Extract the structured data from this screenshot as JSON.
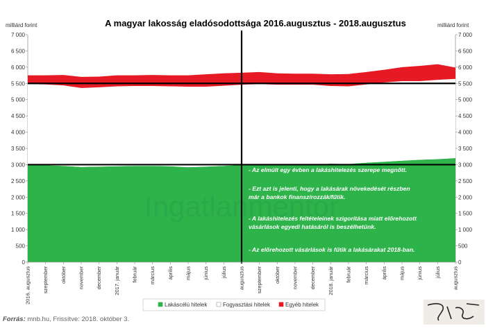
{
  "chart_data": {
    "type": "area",
    "title": "A magyar lakosság eladósodottsága 2016.augusztus - 2018.augusztus",
    "ylabel_left": "milliárd forint",
    "ylabel_right": "milliárd forint",
    "ylim": [
      0,
      7000
    ],
    "yticks": [
      "0",
      "500",
      "1 000",
      "1 500",
      "2 000",
      "2 500",
      "3 000",
      "3 500",
      "4 000",
      "4 500",
      "5 000",
      "5 500",
      "6 000",
      "6 500",
      "7 000"
    ],
    "ytick_values": [
      0,
      500,
      1000,
      1500,
      2000,
      2500,
      3000,
      3500,
      4000,
      4500,
      5000,
      5500,
      6000,
      6500,
      7000
    ],
    "categories": [
      "2016. augusztus",
      "szeptember",
      "október",
      "november",
      "december",
      "2017. január",
      "február",
      "március",
      "április",
      "május",
      "június",
      "július",
      "augusztus",
      "szeptember",
      "október",
      "november",
      "december",
      "2018. január",
      "február",
      "március",
      "április",
      "május",
      "június",
      "július",
      "augusztus"
    ],
    "series": [
      {
        "name": "Lakáscélú hitelek",
        "color": "#2db34a",
        "values": [
          3000,
          2980,
          2960,
          2930,
          2940,
          2950,
          2960,
          2960,
          2950,
          2920,
          2940,
          2960,
          2990,
          3010,
          3000,
          2990,
          3000,
          3030,
          3020,
          3060,
          3090,
          3120,
          3150,
          3170,
          3200
        ]
      },
      {
        "name": "Fogyasztási hitelek",
        "color": "#ffffff",
        "values": [
          2480,
          2490,
          2480,
          2430,
          2440,
          2460,
          2460,
          2460,
          2460,
          2480,
          2460,
          2470,
          2470,
          2470,
          2460,
          2470,
          2460,
          2390,
          2390,
          2410,
          2440,
          2450,
          2420,
          2440,
          2440
        ]
      },
      {
        "name": "Egyéb hitelek",
        "color": "#e51a24",
        "values": [
          270,
          280,
          320,
          340,
          330,
          340,
          330,
          340,
          340,
          350,
          380,
          380,
          370,
          370,
          350,
          340,
          340,
          360,
          380,
          380,
          390,
          430,
          470,
          480,
          350
        ]
      }
    ],
    "reference_lines": {
      "horizontal": [
        3000,
        5500
      ],
      "vertical_category": "augusztus"
    },
    "annotations": [
      "- Az elmúlt egy évben a lakáshitelezés szerepe megnőtt.",
      "- Ezt azt is jelenti, hogy a lakásárak növekedését részben",
      "már a bankok finanszírozzák/fűtik.",
      "- A lakáshitelezés feltételeinek szigorítása miatt előrehozott",
      "vásárlások egyedi hatásáról is beszélhetünk.",
      "- Az előrehozott vásárlások is fűtik a lakásárakat 2018-ban."
    ],
    "watermark": "Ingatlanmentor",
    "legend_position": "bottom"
  },
  "source": {
    "label": "Forrás:",
    "text": " mnb.hu, Frissítve: 2018. október 3."
  }
}
